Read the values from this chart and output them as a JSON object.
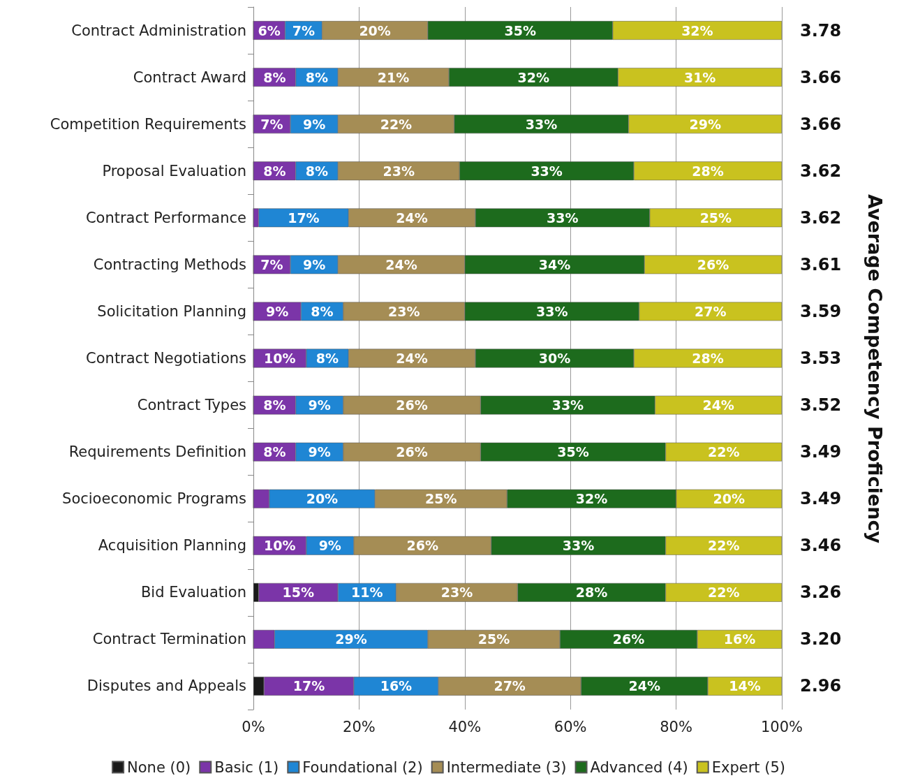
{
  "chart_data": {
    "type": "bar",
    "orientation": "horizontal",
    "stacked": true,
    "categories": [
      "Contract Administration",
      "Contract Award",
      "Competition Requirements",
      "Proposal Evaluation",
      "Contract Performance",
      "Contracting Methods",
      "Solicitation Planning",
      "Contract Negotiations",
      "Contract Types",
      "Requirements Definition",
      "Socioeconomic Programs",
      "Acquisition Planning",
      "Bid Evaluation",
      "Contract Termination",
      "Disputes and Appeals"
    ],
    "series": [
      {
        "name": "None (0)",
        "color": "#1a1a1a",
        "values": [
          0,
          0,
          0,
          0,
          0,
          0,
          0,
          0,
          0,
          0,
          0,
          0,
          1,
          0,
          2
        ],
        "value_labels": [
          null,
          null,
          null,
          null,
          null,
          null,
          null,
          null,
          null,
          null,
          null,
          null,
          null,
          null,
          null
        ]
      },
      {
        "name": "Basic (1)",
        "color": "#7b35a8",
        "values": [
          6,
          8,
          7,
          8,
          1,
          7,
          9,
          10,
          8,
          8,
          3,
          10,
          15,
          4,
          17
        ],
        "value_labels": [
          "6%",
          "8%",
          "7%",
          "8%",
          null,
          "7%",
          "9%",
          "10%",
          "8%",
          "8%",
          null,
          "10%",
          "15%",
          null,
          "17%"
        ]
      },
      {
        "name": "Foundational (2)",
        "color": "#1f86d4",
        "values": [
          7,
          8,
          9,
          8,
          17,
          9,
          8,
          8,
          9,
          9,
          20,
          9,
          11,
          29,
          16
        ],
        "value_labels": [
          "7%",
          "8%",
          "9%",
          "8%",
          "17%",
          "9%",
          "8%",
          "8%",
          "9%",
          "9%",
          "20%",
          "9%",
          "11%",
          "29%",
          "16%"
        ]
      },
      {
        "name": "Intermediate (3)",
        "color": "#a58d55",
        "values": [
          20,
          21,
          22,
          23,
          24,
          24,
          23,
          24,
          26,
          26,
          25,
          26,
          23,
          25,
          27
        ],
        "value_labels": [
          "20%",
          "21%",
          "22%",
          "23%",
          "24%",
          "24%",
          "23%",
          "24%",
          "26%",
          "26%",
          "25%",
          "26%",
          "23%",
          "25%",
          "27%"
        ]
      },
      {
        "name": "Advanced (4)",
        "color": "#1d6b1d",
        "values": [
          35,
          32,
          33,
          33,
          33,
          34,
          33,
          30,
          33,
          35,
          32,
          33,
          28,
          26,
          24
        ],
        "value_labels": [
          "35%",
          "32%",
          "33%",
          "33%",
          "33%",
          "34%",
          "33%",
          "30%",
          "33%",
          "35%",
          "32%",
          "33%",
          "28%",
          "26%",
          "24%"
        ]
      },
      {
        "name": "Expert (5)",
        "color": "#c9c21f",
        "values": [
          32,
          31,
          29,
          28,
          25,
          26,
          27,
          28,
          24,
          22,
          20,
          22,
          22,
          16,
          14
        ],
        "value_labels": [
          "32%",
          "31%",
          "29%",
          "28%",
          "25%",
          "26%",
          "27%",
          "28%",
          "24%",
          "22%",
          "20%",
          "22%",
          "22%",
          "16%",
          "14%"
        ]
      }
    ],
    "xlim": [
      0,
      100
    ],
    "xticks": [
      {
        "value": 0,
        "label": "0%"
      },
      {
        "value": 20,
        "label": "20%"
      },
      {
        "value": 40,
        "label": "40%"
      },
      {
        "value": 60,
        "label": "60%"
      },
      {
        "value": 80,
        "label": "80%"
      },
      {
        "value": 100,
        "label": "100%"
      }
    ],
    "y2label": "Average Competency Proficiency",
    "annotations": [
      "3.78",
      "3.66",
      "3.66",
      "3.62",
      "3.62",
      "3.61",
      "3.59",
      "3.53",
      "3.52",
      "3.49",
      "3.49",
      "3.46",
      "3.26",
      "3.20",
      "2.96"
    ],
    "grid": "x",
    "legend": "bottom"
  }
}
